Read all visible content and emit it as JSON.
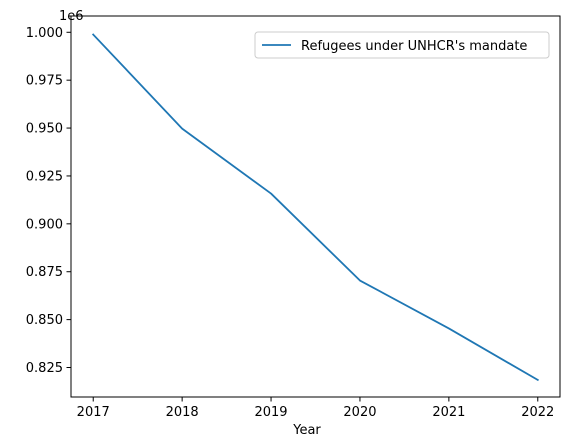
{
  "chart_data": {
    "type": "line",
    "title": "",
    "xlabel": "Year",
    "ylabel": "",
    "y_offset_text": "1e6",
    "x": [
      2017,
      2018,
      2019,
      2020,
      2021,
      2022
    ],
    "x_tick_labels": [
      "2017",
      "2018",
      "2019",
      "2020",
      "2021",
      "2022"
    ],
    "y_ticks": [
      0.825,
      0.85,
      0.875,
      0.9,
      0.925,
      0.95,
      0.975,
      1.0
    ],
    "y_tick_labels": [
      "0.825",
      "0.850",
      "0.875",
      "0.900",
      "0.925",
      "0.950",
      "0.975",
      "1.000"
    ],
    "xlim": [
      2016.75,
      2022.25
    ],
    "ylim": [
      0.8096,
      1.0085
    ],
    "grid": false,
    "legend_position": "upper-right",
    "series": [
      {
        "name": "Refugees under UNHCR's mandate",
        "color": "#1f77b4",
        "values": [
          0.9988,
          0.9497,
          0.9158,
          0.8704,
          0.8454,
          0.8185
        ]
      }
    ]
  }
}
